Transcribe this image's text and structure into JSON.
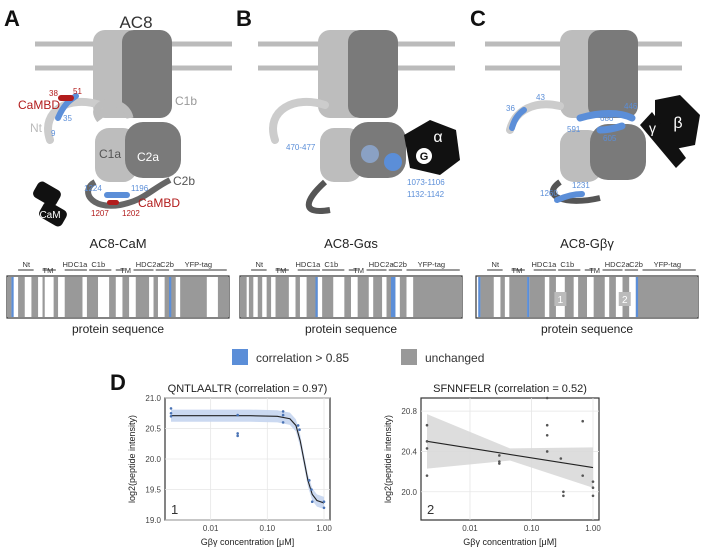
{
  "panels": {
    "a": {
      "letter": "A",
      "title": "AC8",
      "labels": {
        "camdb_top": "CaMBD",
        "camdb_bottom": "CaMBD",
        "nt": "Nt",
        "c1b": "C1b",
        "c1a": "C1a",
        "c2a": "C2a",
        "c2b": "C2b",
        "cam": "CaM"
      },
      "residues": {
        "r38": "38",
        "r51": "51",
        "r35": "35",
        "r9": "9",
        "r1224": "1224",
        "r1196": "1196",
        "r1207": "1207",
        "r1202": "1202"
      }
    },
    "b": {
      "letter": "B",
      "residues": {
        "r470": "470-477",
        "r1073": "1073-1106",
        "r1132": "1132-1142"
      },
      "alpha": "α",
      "g": "G"
    },
    "c": {
      "letter": "C",
      "residues": {
        "r36": "36",
        "r43": "43",
        "r446": "446",
        "r591": "591",
        "r686": "686",
        "r605": "605",
        "r1260": "1260",
        "r1231": "1231"
      },
      "gamma": "γ",
      "beta": "β"
    },
    "d": {
      "letter": "D"
    }
  },
  "sequence_maps": {
    "domain_labels": [
      "Nt",
      "TM",
      "HD",
      "C1a",
      "C1b",
      "TM",
      "HD",
      "C2a",
      "C2b",
      "YFP-tag"
    ],
    "xlabel": "protein sequence",
    "maps": [
      {
        "title": "AC8-CaM"
      },
      {
        "title": "AC8-Gαs"
      },
      {
        "title": "AC8-Gβγ",
        "markers": [
          "1",
          "2"
        ]
      }
    ]
  },
  "legend": {
    "items": [
      {
        "label": "correlation > 0.85",
        "color": "#5b8ed8"
      },
      {
        "label": "unchanged",
        "color": "#999999"
      }
    ]
  },
  "chart_data": [
    {
      "type": "scatter",
      "title": "QNTLAALTR (correlation = 0.97)",
      "xlabel": "Gβγ concentration [μM]",
      "ylabel": "log2(peptide intensity)",
      "x_scale": "log",
      "x_ticks": [
        "0.01",
        "0.10",
        "1.00"
      ],
      "y_ticks": [
        "19.0",
        "19.5",
        "20.0",
        "20.5",
        "21.0"
      ],
      "ylim": [
        19.0,
        21.0
      ],
      "panel_number": "1",
      "points": [
        {
          "x": 0.002,
          "y": 20.83
        },
        {
          "x": 0.002,
          "y": 20.75
        },
        {
          "x": 0.002,
          "y": 20.7
        },
        {
          "x": 0.03,
          "y": 20.72
        },
        {
          "x": 0.03,
          "y": 20.42
        },
        {
          "x": 0.03,
          "y": 20.38
        },
        {
          "x": 0.19,
          "y": 20.78
        },
        {
          "x": 0.19,
          "y": 20.72
        },
        {
          "x": 0.19,
          "y": 20.6
        },
        {
          "x": 0.35,
          "y": 20.55
        },
        {
          "x": 0.37,
          "y": 20.48
        },
        {
          "x": 0.55,
          "y": 19.65
        },
        {
          "x": 0.6,
          "y": 19.5
        },
        {
          "x": 0.62,
          "y": 19.3
        },
        {
          "x": 1.0,
          "y": 19.3
        },
        {
          "x": 1.0,
          "y": 19.2
        }
      ],
      "fit": [
        {
          "x": 0.002,
          "y": 20.71
        },
        {
          "x": 0.05,
          "y": 20.71
        },
        {
          "x": 0.15,
          "y": 20.7
        },
        {
          "x": 0.25,
          "y": 20.66
        },
        {
          "x": 0.32,
          "y": 20.55
        },
        {
          "x": 0.38,
          "y": 20.3
        },
        {
          "x": 0.45,
          "y": 19.95
        },
        {
          "x": 0.52,
          "y": 19.65
        },
        {
          "x": 0.62,
          "y": 19.42
        },
        {
          "x": 0.75,
          "y": 19.32
        },
        {
          "x": 1.0,
          "y": 19.28
        }
      ],
      "band": 0.1,
      "grid": true
    },
    {
      "type": "scatter",
      "title": "SFNNFELR (correlation = 0.52)",
      "xlabel": "Gβγ concentration [μM]",
      "ylabel": "log2(peptide intensity)",
      "x_scale": "log",
      "x_ticks": [
        "0.01",
        "0.10",
        "1.00"
      ],
      "y_ticks": [
        "20.0",
        "20.4",
        "20.8"
      ],
      "ylim": [
        19.72,
        20.93
      ],
      "panel_number": "2",
      "points": [
        {
          "x": 0.002,
          "y": 20.66
        },
        {
          "x": 0.002,
          "y": 20.5
        },
        {
          "x": 0.002,
          "y": 20.43
        },
        {
          "x": 0.002,
          "y": 20.16
        },
        {
          "x": 0.03,
          "y": 20.36
        },
        {
          "x": 0.03,
          "y": 20.3
        },
        {
          "x": 0.03,
          "y": 20.28
        },
        {
          "x": 0.18,
          "y": 20.93
        },
        {
          "x": 0.18,
          "y": 20.66
        },
        {
          "x": 0.18,
          "y": 20.56
        },
        {
          "x": 0.18,
          "y": 20.4
        },
        {
          "x": 0.3,
          "y": 20.33
        },
        {
          "x": 0.33,
          "y": 20.0
        },
        {
          "x": 0.33,
          "y": 19.96
        },
        {
          "x": 0.68,
          "y": 20.7
        },
        {
          "x": 0.68,
          "y": 20.16
        },
        {
          "x": 1.0,
          "y": 20.1
        },
        {
          "x": 1.0,
          "y": 20.04
        },
        {
          "x": 1.0,
          "y": 19.96
        }
      ],
      "fit": [
        {
          "x": 0.002,
          "y": 20.5
        },
        {
          "x": 1.0,
          "y": 20.24
        }
      ],
      "band_left": 0.27,
      "band_mid": 0.06,
      "band_right": 0.2,
      "grid": true
    }
  ]
}
